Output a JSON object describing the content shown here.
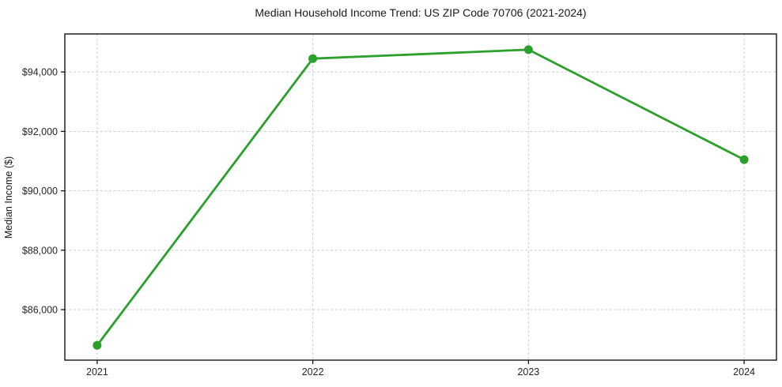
{
  "chart_data": {
    "type": "line",
    "title": "Median Household Income Trend: US ZIP Code 70706 (2021-2024)",
    "xlabel": "",
    "ylabel": "Median Income ($)",
    "x": [
      2021,
      2022,
      2023,
      2024
    ],
    "values": [
      84800,
      94450,
      94750,
      91050
    ],
    "xticks": [
      {
        "value": 2021,
        "label": "2021"
      },
      {
        "value": 2022,
        "label": "2022"
      },
      {
        "value": 2023,
        "label": "2023"
      },
      {
        "value": 2024,
        "label": "2024"
      }
    ],
    "yticks": [
      {
        "value": 86000,
        "label": "$86,000"
      },
      {
        "value": 88000,
        "label": "$88,000"
      },
      {
        "value": 90000,
        "label": "$90,000"
      },
      {
        "value": 92000,
        "label": "$92,000"
      },
      {
        "value": 94000,
        "label": "$94,000"
      }
    ],
    "xlim": [
      2020.85,
      2024.15
    ],
    "ylim": [
      84300,
      95280
    ],
    "grid": true,
    "grid_style": "dashed",
    "legend": "none",
    "line_color": "#2ca02c",
    "marker": "circle",
    "marker_color": "#2ca02c",
    "grid_color": "#cccccc",
    "axis_color": "#000000",
    "text_color": "#262626",
    "background_color": "#ffffff"
  }
}
